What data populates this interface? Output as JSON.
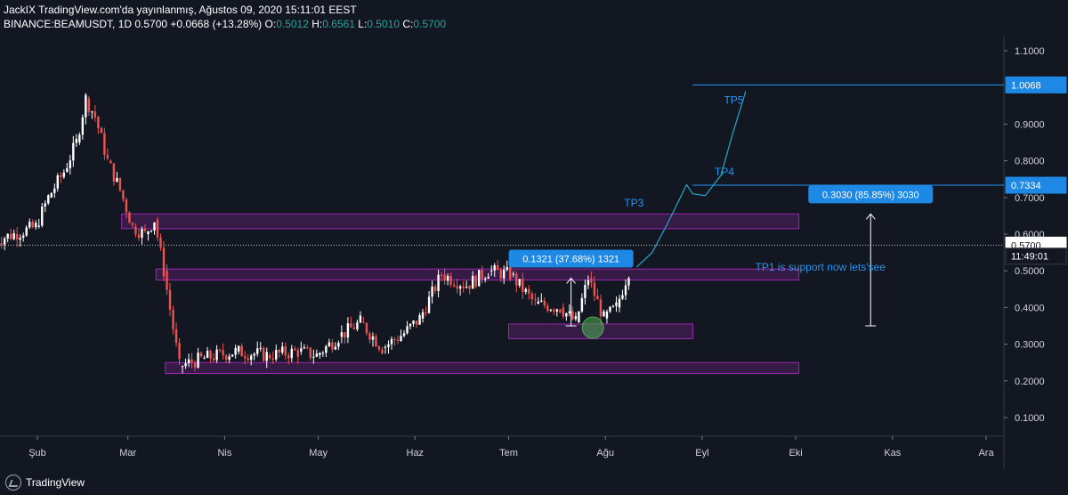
{
  "header": {
    "line1": "JackIX TradingView.com'da yayınlanmış, Ağustos 09, 2020 15:11:01 EEST",
    "symbol": "BINANCE:BEAMUSDT, 1D",
    "last": "0.5700",
    "change": "+0.0668 (+13.28%)",
    "o_label": "O:",
    "o_val": "0.5012",
    "h_label": "H:",
    "h_val": "0.6561",
    "l_label": "L:",
    "l_val": "0.5010",
    "c_label": "C:",
    "c_val": "0.5700"
  },
  "footer": {
    "brand": "TradingView"
  },
  "colors": {
    "up": "#ffffff",
    "down": "#ef5350",
    "zone": "#9c27b0",
    "line": "#2196f3",
    "bg": "#131722"
  },
  "chart_data": {
    "type": "candlestick",
    "x_ticks": [
      "Şub",
      "Mar",
      "Nis",
      "May",
      "Haz",
      "Tem",
      "Ağu",
      "Eyl",
      "Eki",
      "Kas",
      "Ara"
    ],
    "y_ticks": [
      "1.1000",
      "0.9000",
      "0.8000",
      "0.7000",
      "0.6000",
      "0.5000",
      "0.4000",
      "0.3000",
      "0.2000",
      "0.1000"
    ],
    "y_range": [
      0.05,
      1.12
    ],
    "price_labels": [
      {
        "value": 1.0068,
        "text": "1.0068",
        "style": "blue"
      },
      {
        "value": 0.7334,
        "text": "0.7334",
        "style": "blue"
      },
      {
        "value": 0.57,
        "text": "0.5700",
        "style": "white"
      },
      {
        "value": 0.54,
        "text": "11:49:01",
        "style": "dark"
      }
    ],
    "last_price": 0.57,
    "horizontal_lines": [
      {
        "value": 1.0068,
        "from": "2020-08-29"
      },
      {
        "value": 0.7334,
        "from": "2020-08-29"
      }
    ],
    "zones": [
      {
        "from": "2020-02-28",
        "to": "2020-10-02",
        "low": 0.615,
        "high": 0.655
      },
      {
        "from": "2020-03-10",
        "to": "2020-10-02",
        "low": 0.475,
        "high": 0.505
      },
      {
        "from": "2020-07-01",
        "to": "2020-08-29",
        "low": 0.315,
        "high": 0.355
      },
      {
        "from": "2020-03-13",
        "to": "2020-10-02",
        "low": 0.22,
        "high": 0.25
      }
    ],
    "annotations": [
      {
        "text": "TP5",
        "date": "2020-09-08",
        "value": 0.955,
        "color": "#2196f3"
      },
      {
        "text": "TP4",
        "date": "2020-09-05",
        "value": 0.76,
        "color": "#2196f3"
      },
      {
        "text": "TP3",
        "date": "2020-08-07",
        "value": 0.675,
        "color": "#2196f3"
      },
      {
        "text": "TP1 is support now lets'see",
        "date": "2020-09-18",
        "value": 0.5,
        "color": "#2196f3"
      }
    ],
    "measures": [
      {
        "label": "0.1321 (37.68%) 1321",
        "date": "2020-07-21",
        "from": 0.35,
        "to": 0.48
      },
      {
        "label": "0.3030 (85.85%) 3030",
        "date": "2020-10-25",
        "from": 0.35,
        "to": 0.655
      }
    ],
    "projection": [
      [
        "2020-08-11",
        0.51
      ],
      [
        "2020-08-16",
        0.55
      ],
      [
        "2020-08-21",
        0.63
      ],
      [
        "2020-08-25",
        0.7
      ],
      [
        "2020-08-27",
        0.735
      ],
      [
        "2020-08-29",
        0.71
      ],
      [
        "2020-09-02",
        0.705
      ],
      [
        "2020-09-07",
        0.76
      ],
      [
        "2020-09-11",
        0.88
      ],
      [
        "2020-09-15",
        0.99
      ]
    ],
    "circle": {
      "date": "2020-07-28",
      "value": 0.345
    },
    "candles_weekly_approx": [
      [
        "2020-01-18",
        0.58,
        0.6
      ],
      [
        "2020-01-25",
        0.6,
        0.62
      ],
      [
        "2020-02-01",
        0.62,
        0.7
      ],
      [
        "2020-02-05",
        0.7,
        0.77
      ],
      [
        "2020-02-10",
        0.77,
        0.85
      ],
      [
        "2020-02-14",
        0.85,
        0.97
      ],
      [
        "2020-02-17",
        0.97,
        0.92
      ],
      [
        "2020-02-20",
        0.92,
        0.8
      ],
      [
        "2020-02-24",
        0.8,
        0.72
      ],
      [
        "2020-02-28",
        0.72,
        0.62
      ],
      [
        "2020-03-03",
        0.62,
        0.6
      ],
      [
        "2020-03-07",
        0.6,
        0.64
      ],
      [
        "2020-03-10",
        0.64,
        0.5
      ],
      [
        "2020-03-13",
        0.5,
        0.24
      ],
      [
        "2020-03-18",
        0.24,
        0.26
      ],
      [
        "2020-03-25",
        0.26,
        0.28
      ],
      [
        "2020-04-05",
        0.28,
        0.27
      ],
      [
        "2020-04-15",
        0.27,
        0.28
      ],
      [
        "2020-04-25",
        0.28,
        0.27
      ],
      [
        "2020-05-01",
        0.27,
        0.32
      ],
      [
        "2020-05-08",
        0.32,
        0.36
      ],
      [
        "2020-05-15",
        0.36,
        0.29
      ],
      [
        "2020-05-22",
        0.29,
        0.33
      ],
      [
        "2020-05-29",
        0.33,
        0.37
      ],
      [
        "2020-06-03",
        0.37,
        0.49
      ],
      [
        "2020-06-10",
        0.49,
        0.46
      ],
      [
        "2020-06-18",
        0.46,
        0.5
      ],
      [
        "2020-06-25",
        0.5,
        0.49
      ],
      [
        "2020-07-02",
        0.49,
        0.41
      ],
      [
        "2020-07-10",
        0.41,
        0.4
      ],
      [
        "2020-07-18",
        0.4,
        0.36
      ],
      [
        "2020-07-23",
        0.36,
        0.48
      ],
      [
        "2020-07-27",
        0.48,
        0.37
      ],
      [
        "2020-08-01",
        0.37,
        0.4
      ],
      [
        "2020-08-05",
        0.4,
        0.5
      ],
      [
        "2020-08-09",
        0.5,
        0.57
      ]
    ]
  }
}
